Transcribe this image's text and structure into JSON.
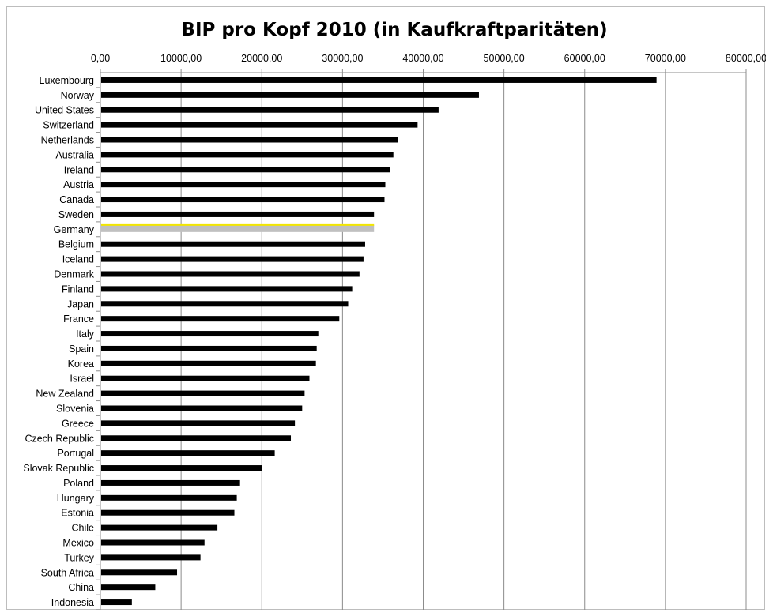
{
  "chart_data": {
    "type": "bar",
    "orientation": "horizontal",
    "title": "BIP pro Kopf 2010 (in Kaufkraftparitäten)",
    "xlabel": "",
    "ylabel": "",
    "xlim": [
      0,
      80000
    ],
    "x_ticks": [
      "0,00",
      "10000,00",
      "20000,00",
      "30000,00",
      "40000,00",
      "50000,00",
      "60000,00",
      "70000,00",
      "80000,00"
    ],
    "x_tick_values": [
      0,
      10000,
      20000,
      30000,
      40000,
      50000,
      60000,
      70000,
      80000
    ],
    "x_axis_position": "top",
    "grid": true,
    "legend": "none",
    "bar_color": "#000000",
    "highlight_category": "Germany",
    "highlight_color": "#c0c0c0",
    "highlight_outline_color": "#f2e600",
    "categories": [
      "Luxembourg",
      "Norway",
      "United States",
      "Switzerland",
      "Netherlands",
      "Australia",
      "Ireland",
      "Austria",
      "Canada",
      "Sweden",
      "Germany",
      "Belgium",
      "Iceland",
      "Denmark",
      "Finland",
      "Japan",
      "France",
      "Italy",
      "Spain",
      "Korea",
      "Israel",
      "New Zealand",
      "Slovenia",
      "Greece",
      "Czech Republic",
      "Portugal",
      "Slovak Republic",
      "Poland",
      "Hungary",
      "Estonia",
      "Chile",
      "Mexico",
      "Turkey",
      "South Africa",
      "China",
      "Indonesia"
    ],
    "values": [
      68900,
      46900,
      41900,
      39300,
      36900,
      36300,
      35900,
      35300,
      35200,
      33900,
      33900,
      32800,
      32600,
      32100,
      31200,
      30700,
      29600,
      27000,
      26800,
      26700,
      25900,
      25300,
      25000,
      24100,
      23600,
      21600,
      20000,
      17300,
      16900,
      16600,
      14500,
      12900,
      12400,
      9500,
      6800,
      3900
    ]
  }
}
